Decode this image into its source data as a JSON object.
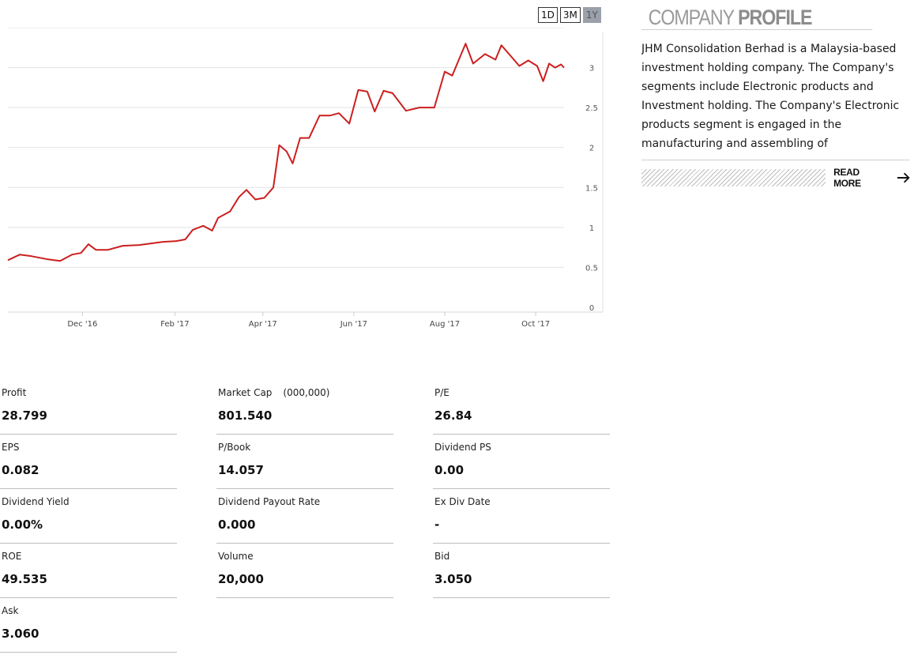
{
  "range_buttons": [
    "1D",
    "3M",
    "1Y"
  ],
  "active_range": "1Y",
  "chart_data": {
    "type": "line",
    "series": [
      {
        "color": "#cc1f1f",
        "points": [
          [
            "2016-10-12",
            0.59
          ],
          [
            "2016-10-20",
            0.66
          ],
          [
            "2016-10-28",
            0.64
          ],
          [
            "2016-11-08",
            0.6
          ],
          [
            "2016-11-16",
            0.58
          ],
          [
            "2016-11-24",
            0.66
          ],
          [
            "2016-11-30",
            0.68
          ],
          [
            "2016-12-05",
            0.79
          ],
          [
            "2016-12-10",
            0.72
          ],
          [
            "2016-12-18",
            0.72
          ],
          [
            "2016-12-28",
            0.77
          ],
          [
            "2017-01-08",
            0.78
          ],
          [
            "2017-01-16",
            0.8
          ],
          [
            "2017-01-24",
            0.82
          ],
          [
            "2017-02-02",
            0.83
          ],
          [
            "2017-02-08",
            0.85
          ],
          [
            "2017-02-13",
            0.97
          ],
          [
            "2017-02-20",
            1.02
          ],
          [
            "2017-02-26",
            0.96
          ],
          [
            "2017-03-02",
            1.12
          ],
          [
            "2017-03-10",
            1.2
          ],
          [
            "2017-03-16",
            1.38
          ],
          [
            "2017-03-21",
            1.47
          ],
          [
            "2017-03-27",
            1.35
          ],
          [
            "2017-04-02",
            1.37
          ],
          [
            "2017-04-08",
            1.5
          ],
          [
            "2017-04-12",
            2.03
          ],
          [
            "2017-04-17",
            1.95
          ],
          [
            "2017-04-21",
            1.8
          ],
          [
            "2017-04-26",
            2.12
          ],
          [
            "2017-05-02",
            2.12
          ],
          [
            "2017-05-09",
            2.4
          ],
          [
            "2017-05-16",
            2.4
          ],
          [
            "2017-05-22",
            2.43
          ],
          [
            "2017-05-29",
            2.3
          ],
          [
            "2017-06-04",
            2.72
          ],
          [
            "2017-06-10",
            2.7
          ],
          [
            "2017-06-15",
            2.45
          ],
          [
            "2017-06-21",
            2.71
          ],
          [
            "2017-06-27",
            2.68
          ],
          [
            "2017-07-06",
            2.46
          ],
          [
            "2017-07-15",
            2.5
          ],
          [
            "2017-07-25",
            2.5
          ],
          [
            "2017-08-01",
            2.95
          ],
          [
            "2017-08-06",
            2.9
          ],
          [
            "2017-08-15",
            3.3
          ],
          [
            "2017-08-20",
            3.05
          ],
          [
            "2017-08-28",
            3.17
          ],
          [
            "2017-09-04",
            3.1
          ],
          [
            "2017-09-08",
            3.28
          ],
          [
            "2017-09-14",
            3.15
          ],
          [
            "2017-09-20",
            3.02
          ],
          [
            "2017-09-26",
            3.09
          ],
          [
            "2017-10-02",
            3.02
          ],
          [
            "2017-10-06",
            2.83
          ],
          [
            "2017-10-10",
            3.05
          ],
          [
            "2017-10-14",
            3.0
          ],
          [
            "2017-10-18",
            3.04
          ],
          [
            "2017-10-20",
            3.0
          ]
        ]
      }
    ],
    "x_ticks": [
      "Dec '16",
      "Feb '17",
      "Apr '17",
      "Jun '17",
      "Aug '17",
      "Oct '17"
    ],
    "y_ticks": [
      "0",
      "0.5",
      "1",
      "1.5",
      "2",
      "2.5",
      "3"
    ],
    "ylim": [
      0,
      3.5
    ],
    "xlim": [
      "2016-10-12",
      "2017-10-20"
    ],
    "grid": true,
    "y_axis_side": "right"
  },
  "profile": {
    "title_light": "COMPANY",
    "title_bold": "PROFILE",
    "text": "JHM Consolidation Berhad is a Malaysia-based investment holding company. The Company's segments include Electronic products and Investment holding. The Company's Electronic products segment is engaged in the manufacturing and assembling of components...",
    "read_more": "READ MORE"
  },
  "stats": [
    {
      "label": "Profit",
      "value": "28.799"
    },
    {
      "label": "Market Cap",
      "unit": "(000,000)",
      "value": "801.540"
    },
    {
      "label": "P/E",
      "value": "26.84"
    },
    {
      "label": "EPS",
      "value": "0.082"
    },
    {
      "label": "P/Book",
      "value": "14.057"
    },
    {
      "label": "Dividend PS",
      "value": "0.00"
    },
    {
      "label": "Dividend Yield",
      "value": "0.00%"
    },
    {
      "label": "Dividend Payout Rate",
      "value": "0.000"
    },
    {
      "label": "Ex Div Date",
      "value": "-"
    },
    {
      "label": "ROE",
      "value": "49.535"
    },
    {
      "label": "Volume",
      "value": "20,000"
    },
    {
      "label": "Bid",
      "value": "3.050"
    },
    {
      "label": "Ask",
      "value": "3.060"
    }
  ],
  "icons": {
    "read_more": "arrow-right-icon"
  }
}
